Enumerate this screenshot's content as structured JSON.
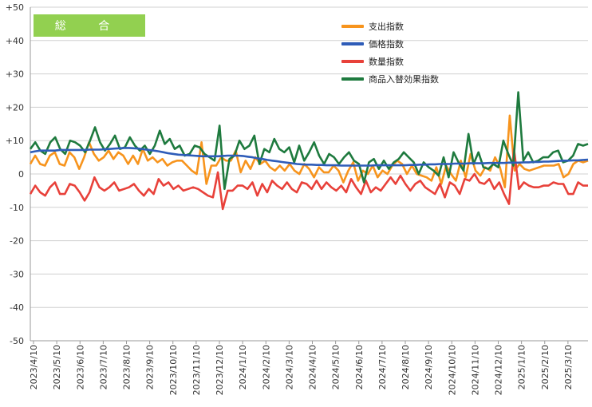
{
  "chart_data": {
    "type": "line",
    "badge": "総 合",
    "ylim": [
      -50,
      50
    ],
    "yticks": [
      "+50",
      "+40",
      "+30",
      "+20",
      "+10",
      "0",
      "-10",
      "-20",
      "-30",
      "-40",
      "-50"
    ],
    "xticks": [
      "2023/4/10",
      "2023/5/10",
      "2023/6/10",
      "2023/7/10",
      "2023/8/10",
      "2023/9/10",
      "2023/10/10",
      "2023/11/10",
      "2023/12/10",
      "2024/1/10",
      "2024/2/10",
      "2024/3/10",
      "2024/4/10",
      "2024/5/10",
      "2024/6/10",
      "2024/7/10",
      "2024/8/10",
      "2024/9/10",
      "2024/10/10",
      "2024/11/10",
      "2024/12/10",
      "2025/1/10",
      "2025/2/10",
      "2025/3/10"
    ],
    "series": [
      {
        "name": "支出指数",
        "color": "#f7941d",
        "values": [
          3,
          5.5,
          3,
          2.5,
          5.5,
          6.5,
          3,
          2.5,
          6.5,
          5,
          1.5,
          5,
          9.5,
          6,
          4,
          5,
          7,
          4.5,
          6.5,
          5.5,
          3,
          5.5,
          3,
          7.5,
          4,
          5,
          3.5,
          4.5,
          2.5,
          3.5,
          4,
          4,
          2.5,
          1,
          0,
          9.5,
          -3,
          2.5,
          2.5,
          5,
          4,
          4,
          7,
          0.5,
          4,
          1.5,
          5,
          3,
          4,
          2,
          1,
          2.5,
          1,
          3,
          1,
          0,
          3,
          1.5,
          -1,
          2,
          0.5,
          0.5,
          2.5,
          1,
          -2.5,
          1,
          3.5,
          -2,
          1,
          0,
          2.5,
          -1,
          1,
          0,
          2.5,
          4,
          3,
          0,
          2.5,
          0,
          -0.5,
          -1,
          -2,
          2,
          -3,
          2.5,
          0,
          -2,
          4,
          -1,
          6,
          1,
          -0.5,
          2,
          1,
          5,
          2,
          -4,
          17.5,
          1,
          3,
          1.5,
          1,
          1.5,
          2,
          2.5,
          2.5,
          2.5,
          3,
          -1,
          0,
          3,
          4,
          3.5,
          4
        ]
      },
      {
        "name": "価格指数",
        "color": "#2e5cb8",
        "values": [
          6.5,
          6.8,
          7,
          7,
          7,
          7,
          7.2,
          7.2,
          7.2,
          7.2,
          7.2,
          7.2,
          7.3,
          7.3,
          7.3,
          7.4,
          7.5,
          7.6,
          7.7,
          7.8,
          7.8,
          7.7,
          7.6,
          7.4,
          7.2,
          7,
          6.8,
          6.5,
          6.2,
          6,
          5.8,
          5.7,
          5.6,
          5.5,
          5.4,
          5.3,
          5.3,
          5.3,
          5.3,
          5.4,
          5.5,
          5.5,
          5.5,
          5.4,
          5.2,
          5,
          4.7,
          4.5,
          4.2,
          4,
          3.8,
          3.6,
          3.4,
          3.2,
          3,
          2.9,
          2.8,
          2.8,
          2.7,
          2.7,
          2.6,
          2.6,
          2.6,
          2.5,
          2.5,
          2.5,
          2.5,
          2.5,
          2.5,
          2.5,
          2.6,
          2.6,
          2.6,
          2.6,
          2.6,
          2.6,
          2.6,
          2.7,
          2.7,
          2.8,
          2.8,
          2.9,
          2.9,
          3,
          3,
          3,
          3.1,
          3.1,
          3.1,
          3.2,
          3.2,
          3.2,
          3.2,
          3.3,
          3.3,
          3.3,
          3.3,
          3.4,
          3.4,
          3.4,
          3.5,
          3.5,
          3.6,
          3.6,
          3.7,
          3.7,
          3.8,
          3.9,
          4,
          4,
          4.1,
          4.1,
          4.2,
          4.3
        ]
      },
      {
        "name": "数量指数",
        "color": "#e8413a",
        "values": [
          -6,
          -3.5,
          -5.5,
          -6.5,
          -4,
          -2.5,
          -6,
          -6,
          -3,
          -3.5,
          -5.5,
          -8,
          -5.5,
          -1,
          -4,
          -5,
          -4,
          -2.5,
          -5,
          -4.5,
          -4,
          -3,
          -5,
          -6.5,
          -4.5,
          -6,
          -1.5,
          -3.5,
          -2.5,
          -4.5,
          -3.5,
          -5,
          -4.5,
          -4,
          -4.5,
          -5.5,
          -6.5,
          -7,
          0.5,
          -10.5,
          -5,
          -5,
          -3.5,
          -3.5,
          -4.5,
          -2.5,
          -6.5,
          -3,
          -5.5,
          -2,
          -3.5,
          -4.5,
          -2.5,
          -4.5,
          -5.5,
          -2.5,
          -3,
          -4.5,
          -2,
          -4.5,
          -2.5,
          -4,
          -5,
          -3.5,
          -5.5,
          -1.5,
          -4,
          -6,
          -2,
          -5.5,
          -4,
          -5,
          -3,
          -1,
          -3,
          -0.5,
          -3,
          -5,
          -3,
          -2,
          -4,
          -5,
          -6,
          -3,
          -7,
          -2.5,
          -3.5,
          -6,
          -1.5,
          -2,
          0,
          -2.5,
          -3,
          -1.5,
          -4.5,
          -2.5,
          -6,
          -9,
          7.5,
          -4.5,
          -2.5,
          -3.5,
          -4,
          -4,
          -3.5,
          -3.5,
          -2.5,
          -3,
          -3,
          -6,
          -6,
          -2.5,
          -3.5,
          -3.5
        ]
      },
      {
        "name": "商品入替効果指数",
        "color": "#1e7a3e",
        "values": [
          7.5,
          9.5,
          7,
          6,
          9.5,
          11,
          7.5,
          6,
          10,
          9.5,
          8.5,
          6.5,
          10,
          14,
          9.5,
          7,
          9,
          11.5,
          7.5,
          8,
          11,
          8.5,
          7,
          8.5,
          6,
          8.5,
          13,
          9,
          10.5,
          7.5,
          8.5,
          5.5,
          6,
          8.5,
          8,
          6,
          5,
          4,
          14.5,
          -4.5,
          4.5,
          5.5,
          10,
          7.5,
          8.5,
          11.5,
          3,
          7.5,
          6.5,
          10.5,
          7.5,
          6.5,
          8,
          3.5,
          8.5,
          4,
          6.5,
          9.5,
          5.5,
          3,
          6,
          5,
          3,
          5,
          6.5,
          4,
          3,
          -2.5,
          3.5,
          4.5,
          1.5,
          4,
          1.5,
          3.5,
          4.5,
          6.5,
          5,
          3.5,
          0,
          3.5,
          2,
          1,
          -0.5,
          5,
          -1,
          6.5,
          3.5,
          1,
          12,
          3,
          6.5,
          2,
          1.5,
          3,
          2,
          10,
          6,
          2.5,
          24.5,
          4,
          6.5,
          3.5,
          4,
          5,
          5,
          6.5,
          7,
          3.5,
          4,
          5.5,
          9,
          8.5,
          9
        ]
      }
    ]
  }
}
